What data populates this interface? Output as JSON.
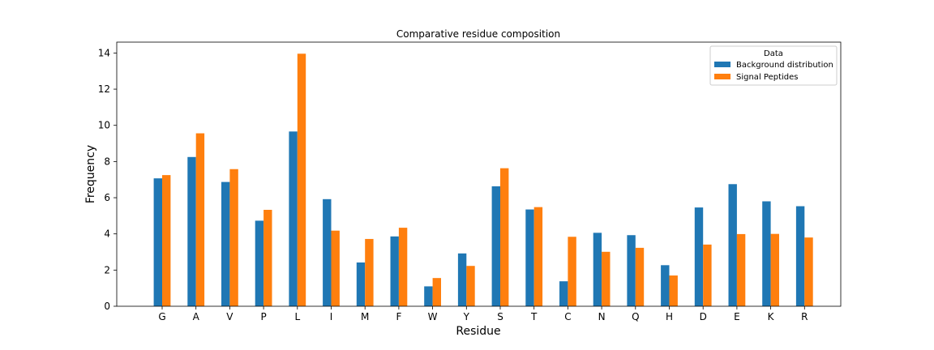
{
  "chart_data": {
    "type": "bar",
    "title": "Comparative residue composition",
    "xlabel": "Residue",
    "ylabel": "Frequency",
    "ylim": [
      0,
      14.6
    ],
    "yticks": [
      0,
      2,
      4,
      6,
      8,
      10,
      12,
      14
    ],
    "grid": false,
    "legend": {
      "title": "Data",
      "position": "top-right"
    },
    "categories": [
      "G",
      "A",
      "V",
      "P",
      "L",
      "I",
      "M",
      "F",
      "W",
      "Y",
      "S",
      "T",
      "C",
      "N",
      "Q",
      "H",
      "D",
      "E",
      "K",
      "R"
    ],
    "series": [
      {
        "name": "Background distribution",
        "color": "#1f77b4",
        "values": [
          7.07,
          8.25,
          6.87,
          4.73,
          9.66,
          5.92,
          2.42,
          3.86,
          1.1,
          2.92,
          6.63,
          5.35,
          1.38,
          4.06,
          3.93,
          2.27,
          5.46,
          6.75,
          5.8,
          5.53
        ]
      },
      {
        "name": "Signal Peptides",
        "color": "#ff7f0e",
        "values": [
          7.25,
          9.56,
          7.58,
          5.33,
          13.96,
          4.18,
          3.72,
          4.34,
          1.56,
          2.23,
          7.63,
          5.48,
          3.84,
          3.01,
          3.23,
          1.7,
          3.41,
          3.99,
          4.0,
          3.8
        ]
      }
    ]
  }
}
